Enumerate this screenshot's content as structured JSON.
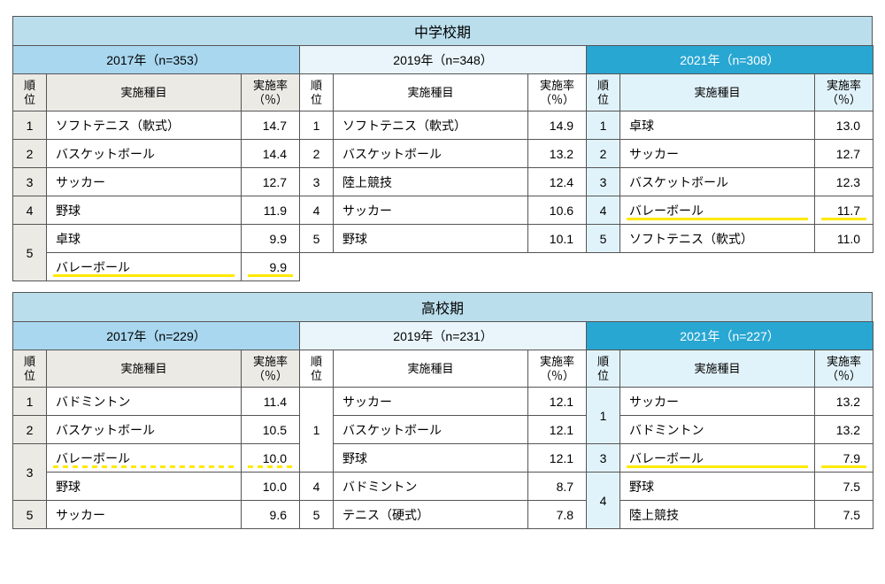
{
  "tables": [
    {
      "title": "中学校期",
      "years": [
        {
          "header": "2017年（n=353）",
          "hdrClass": "y17",
          "chClass": "ch17",
          "rankClass": "r17",
          "rows": [
            {
              "rank": "1",
              "sport": "ソフトテニス（軟式）",
              "rate": "14.7"
            },
            {
              "rank": "2",
              "sport": "バスケットボール",
              "rate": "14.4"
            },
            {
              "rank": "3",
              "sport": "サッカー",
              "rate": "12.7"
            },
            {
              "rank": "4",
              "sport": "野球",
              "rate": "11.9"
            },
            {
              "rank": "5",
              "rankSpan": 2,
              "sport": "卓球",
              "rate": "9.9"
            },
            {
              "sport": "バレーボール",
              "rate": "9.9",
              "dash": true,
              "hl": true
            }
          ]
        },
        {
          "header": "2019年（n=348）",
          "hdrClass": "y19",
          "chClass": "ch19",
          "rankClass": "r19",
          "rows": [
            {
              "rank": "1",
              "sport": "ソフトテニス（軟式）",
              "rate": "14.9"
            },
            {
              "rank": "2",
              "sport": "バスケットボール",
              "rate": "13.2"
            },
            {
              "rank": "3",
              "sport": "陸上競技",
              "rate": "12.4"
            },
            {
              "rank": "4",
              "sport": "サッカー",
              "rate": "10.6"
            },
            {
              "rank": "5",
              "sport": "野球",
              "rate": "10.1"
            }
          ]
        },
        {
          "header": "2021年（n=308）",
          "hdrClass": "y21",
          "chClass": "ch21",
          "rankClass": "r21",
          "rows": [
            {
              "rank": "1",
              "sport": "卓球",
              "rate": "13.0"
            },
            {
              "rank": "2",
              "sport": "サッカー",
              "rate": "12.7"
            },
            {
              "rank": "3",
              "sport": "バスケットボール",
              "rate": "12.3"
            },
            {
              "rank": "4",
              "sport": "バレーボール",
              "rate": "11.7",
              "hl": true
            },
            {
              "rank": "5",
              "sport": "ソフトテニス（軟式）",
              "rate": "11.0"
            }
          ]
        }
      ]
    },
    {
      "title": "高校期",
      "years": [
        {
          "header": "2017年（n=229）",
          "hdrClass": "y17",
          "chClass": "ch17",
          "rankClass": "r17",
          "rows": [
            {
              "rank": "1",
              "sport": "バドミントン",
              "rate": "11.4"
            },
            {
              "rank": "2",
              "sport": "バスケットボール",
              "rate": "10.5"
            },
            {
              "rank": "3",
              "rankSpan": 2,
              "sport": "バレーボール",
              "rate": "10.0",
              "hl": true,
              "hlDash": true
            },
            {
              "sport": "野球",
              "rate": "10.0",
              "dash": true
            },
            {
              "rank": "5",
              "sport": "サッカー",
              "rate": "9.6"
            }
          ]
        },
        {
          "header": "2019年（n=231）",
          "hdrClass": "y19",
          "chClass": "ch19",
          "rankClass": "r19",
          "rows": [
            {
              "rank": "1",
              "rankSpan": 3,
              "sport": "サッカー",
              "rate": "12.1"
            },
            {
              "sport": "バスケットボール",
              "rate": "12.1",
              "dash": true
            },
            {
              "sport": "野球",
              "rate": "12.1",
              "dash": true
            },
            {
              "rank": "4",
              "sport": "バドミントン",
              "rate": "8.7"
            },
            {
              "rank": "5",
              "sport": "テニス（硬式）",
              "rate": "7.8"
            }
          ]
        },
        {
          "header": "2021年（n=227）",
          "hdrClass": "y21",
          "chClass": "ch21",
          "rankClass": "r21",
          "rows": [
            {
              "rank": "1",
              "rankSpan": 2,
              "sport": "サッカー",
              "rate": "13.2"
            },
            {
              "sport": "バドミントン",
              "rate": "13.2",
              "dash": true
            },
            {
              "rank": "3",
              "sport": "バレーボール",
              "rate": "7.9",
              "hl": true
            },
            {
              "rank": "4",
              "rankSpan": 2,
              "sport": "野球",
              "rate": "7.5"
            },
            {
              "sport": "陸上競技",
              "rate": "7.5",
              "dash": true
            }
          ]
        }
      ]
    }
  ],
  "labels": {
    "rank": "順位",
    "sport": "実施種目",
    "rate": "実施率\n（％）"
  }
}
